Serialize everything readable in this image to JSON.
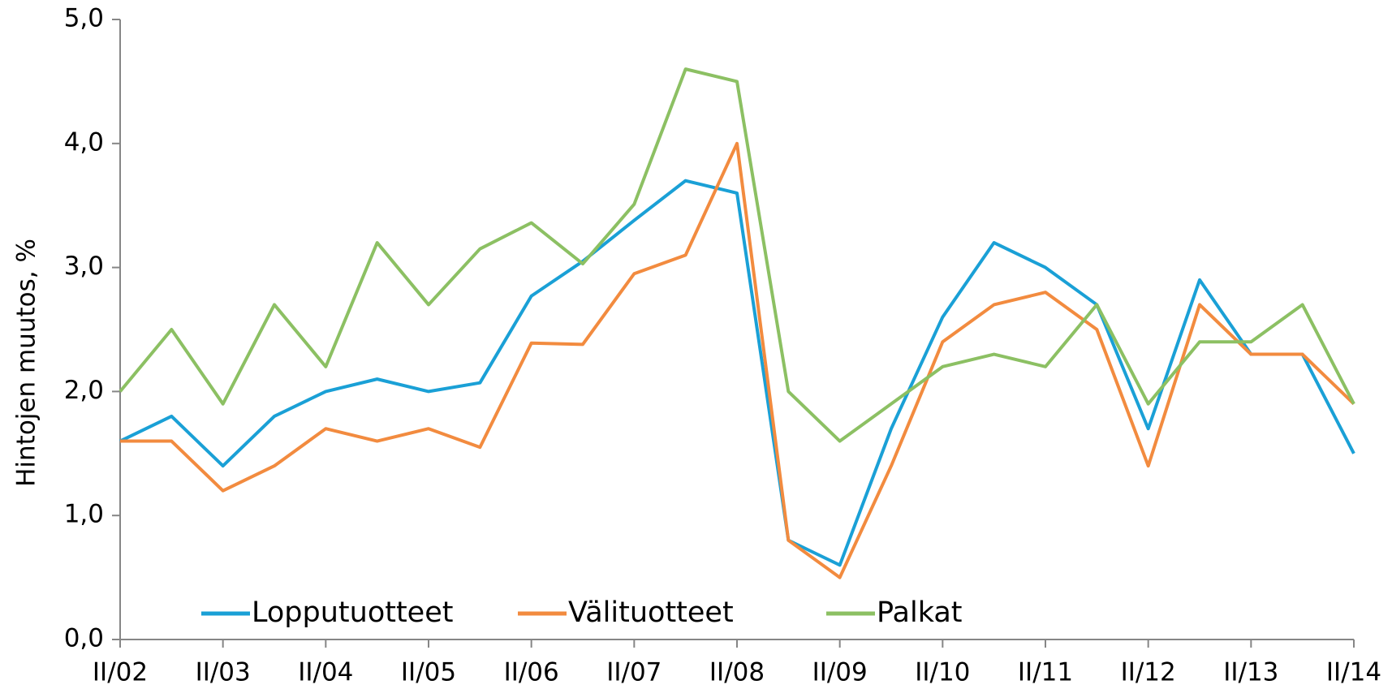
{
  "chart_data": {
    "type": "line",
    "y_label": "Hintojen muutos, %",
    "categories": [
      "II/02",
      null,
      "II/03",
      null,
      "II/04",
      null,
      "II/05",
      null,
      "II/06",
      null,
      "II/07",
      null,
      "II/08",
      null,
      "II/09",
      null,
      "II/10",
      null,
      "II/11",
      null,
      "II/12",
      null,
      "II/13",
      null,
      "II/14"
    ],
    "series": [
      {
        "name": "Lopputuotteet",
        "color": "#1aa0d6",
        "values": [
          1.6,
          1.8,
          1.4,
          1.8,
          2.0,
          2.1,
          2.0,
          2.07,
          2.77,
          3.05,
          3.38,
          3.7,
          3.6,
          0.8,
          0.6,
          1.7,
          2.6,
          3.2,
          3.0,
          2.7,
          1.7,
          2.9,
          2.3,
          2.3,
          1.5
        ]
      },
      {
        "name": "Välituotteet",
        "color": "#f28b3f",
        "values": [
          1.6,
          1.6,
          1.2,
          1.4,
          1.7,
          1.6,
          1.7,
          1.55,
          2.39,
          2.38,
          2.95,
          3.1,
          4.0,
          0.8,
          0.5,
          1.4,
          2.4,
          2.7,
          2.8,
          2.5,
          1.4,
          2.7,
          2.3,
          2.3,
          1.9
        ]
      },
      {
        "name": "Palkat",
        "color": "#8cc063",
        "values": [
          2.0,
          2.5,
          1.9,
          2.7,
          2.2,
          3.2,
          2.7,
          3.15,
          3.36,
          3.03,
          3.51,
          4.6,
          4.5,
          2.0,
          1.6,
          1.9,
          2.2,
          2.3,
          2.2,
          2.7,
          1.9,
          2.4,
          2.4,
          2.7,
          1.9
        ]
      }
    ],
    "ylim": [
      0,
      5
    ],
    "yticks": [
      {
        "value": 0,
        "label": "0,0"
      },
      {
        "value": 1,
        "label": "1,0"
      },
      {
        "value": 2,
        "label": "2,0"
      },
      {
        "value": 3,
        "label": "3,0"
      },
      {
        "value": 4,
        "label": "4,0"
      },
      {
        "value": 5,
        "label": "5,0"
      }
    ],
    "grid": false,
    "legend": "bottom-left"
  }
}
